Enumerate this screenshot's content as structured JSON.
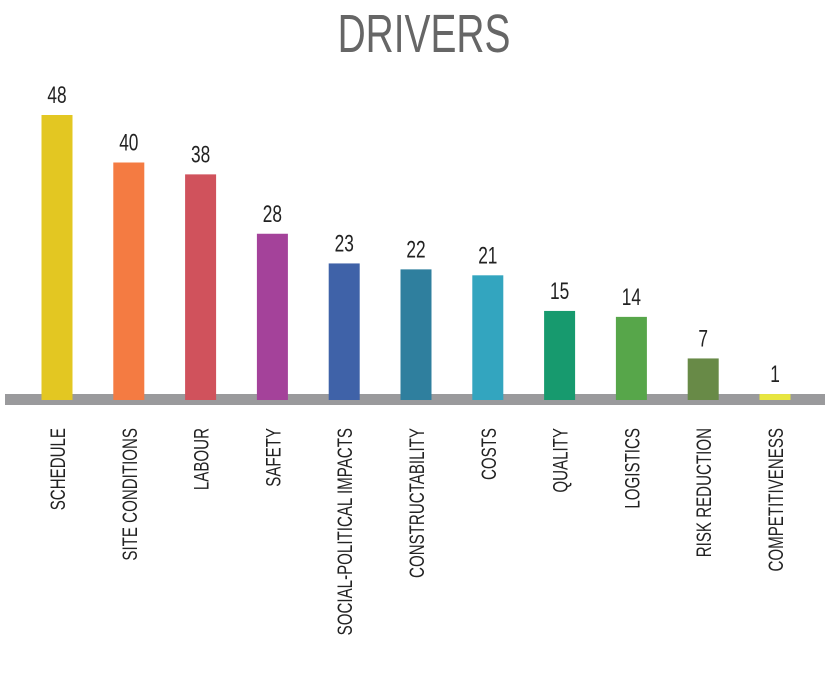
{
  "chart_data": {
    "type": "bar",
    "title": "DRIVERS",
    "categories": [
      "SCHEDULE",
      "SITE CONDITIONS",
      "LABOUR",
      "SAFETY",
      "SOCIAL-POLITICAL IMPACTS",
      "CONSTRUCTABILITY",
      "COSTS",
      "QUALITY",
      "LOGISTICS",
      "RISK REDUCTION",
      "COMPETITIVENESS"
    ],
    "values": [
      48,
      40,
      38,
      28,
      23,
      22,
      21,
      15,
      14,
      7,
      1
    ],
    "colors": [
      "#e3c722",
      "#f47b42",
      "#d0525c",
      "#a4429a",
      "#3f62a8",
      "#2f7f9e",
      "#33a5bf",
      "#179a6e",
      "#57a64a",
      "#688a47",
      "#e8e63f"
    ]
  }
}
